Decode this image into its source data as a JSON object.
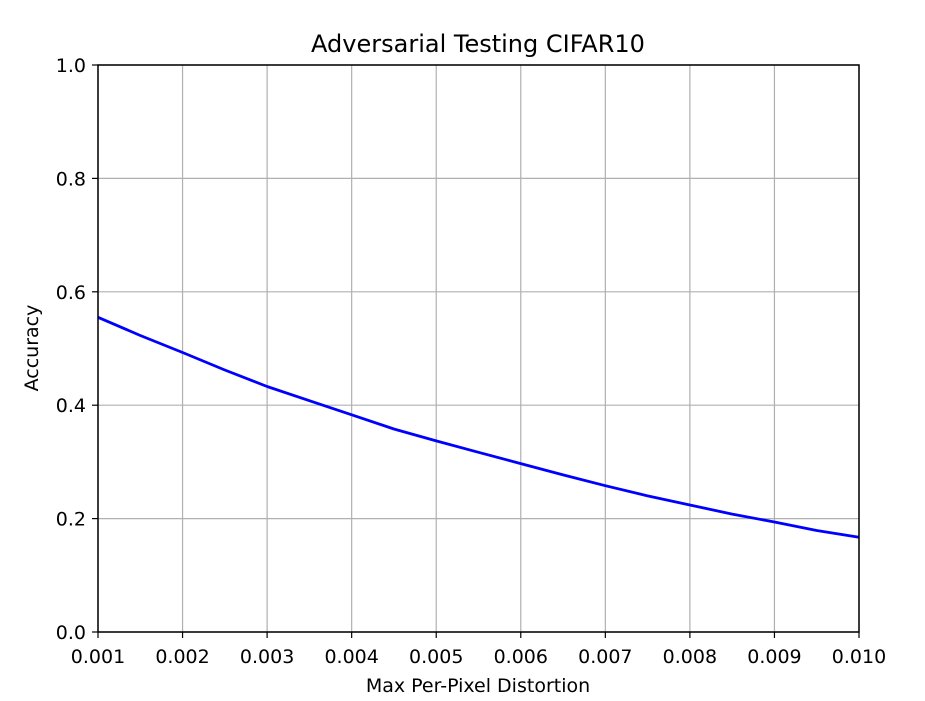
{
  "chart_data": {
    "type": "line",
    "title": "Adversarial Testing CIFAR10",
    "xlabel": "Max Per-Pixel Distortion",
    "ylabel": "Accuracy",
    "xlim": [
      0.001,
      0.01
    ],
    "ylim": [
      0.0,
      1.0
    ],
    "grid": true,
    "x_ticks": [
      "0.001",
      "0.002",
      "0.003",
      "0.004",
      "0.005",
      "0.006",
      "0.007",
      "0.008",
      "0.009",
      "0.010"
    ],
    "y_ticks": [
      "0.0",
      "0.2",
      "0.4",
      "0.6",
      "0.8",
      "1.0"
    ],
    "series": [
      {
        "color": "#0000ff",
        "x": [
          0.001,
          0.0015,
          0.002,
          0.0025,
          0.003,
          0.0035,
          0.004,
          0.0045,
          0.005,
          0.0055,
          0.006,
          0.0065,
          0.007,
          0.0075,
          0.008,
          0.0085,
          0.009,
          0.0095,
          0.01
        ],
        "y": [
          0.555,
          0.523,
          0.493,
          0.462,
          0.433,
          0.408,
          0.383,
          0.358,
          0.337,
          0.317,
          0.297,
          0.277,
          0.258,
          0.24,
          0.224,
          0.208,
          0.194,
          0.179,
          0.167
        ]
      }
    ]
  }
}
